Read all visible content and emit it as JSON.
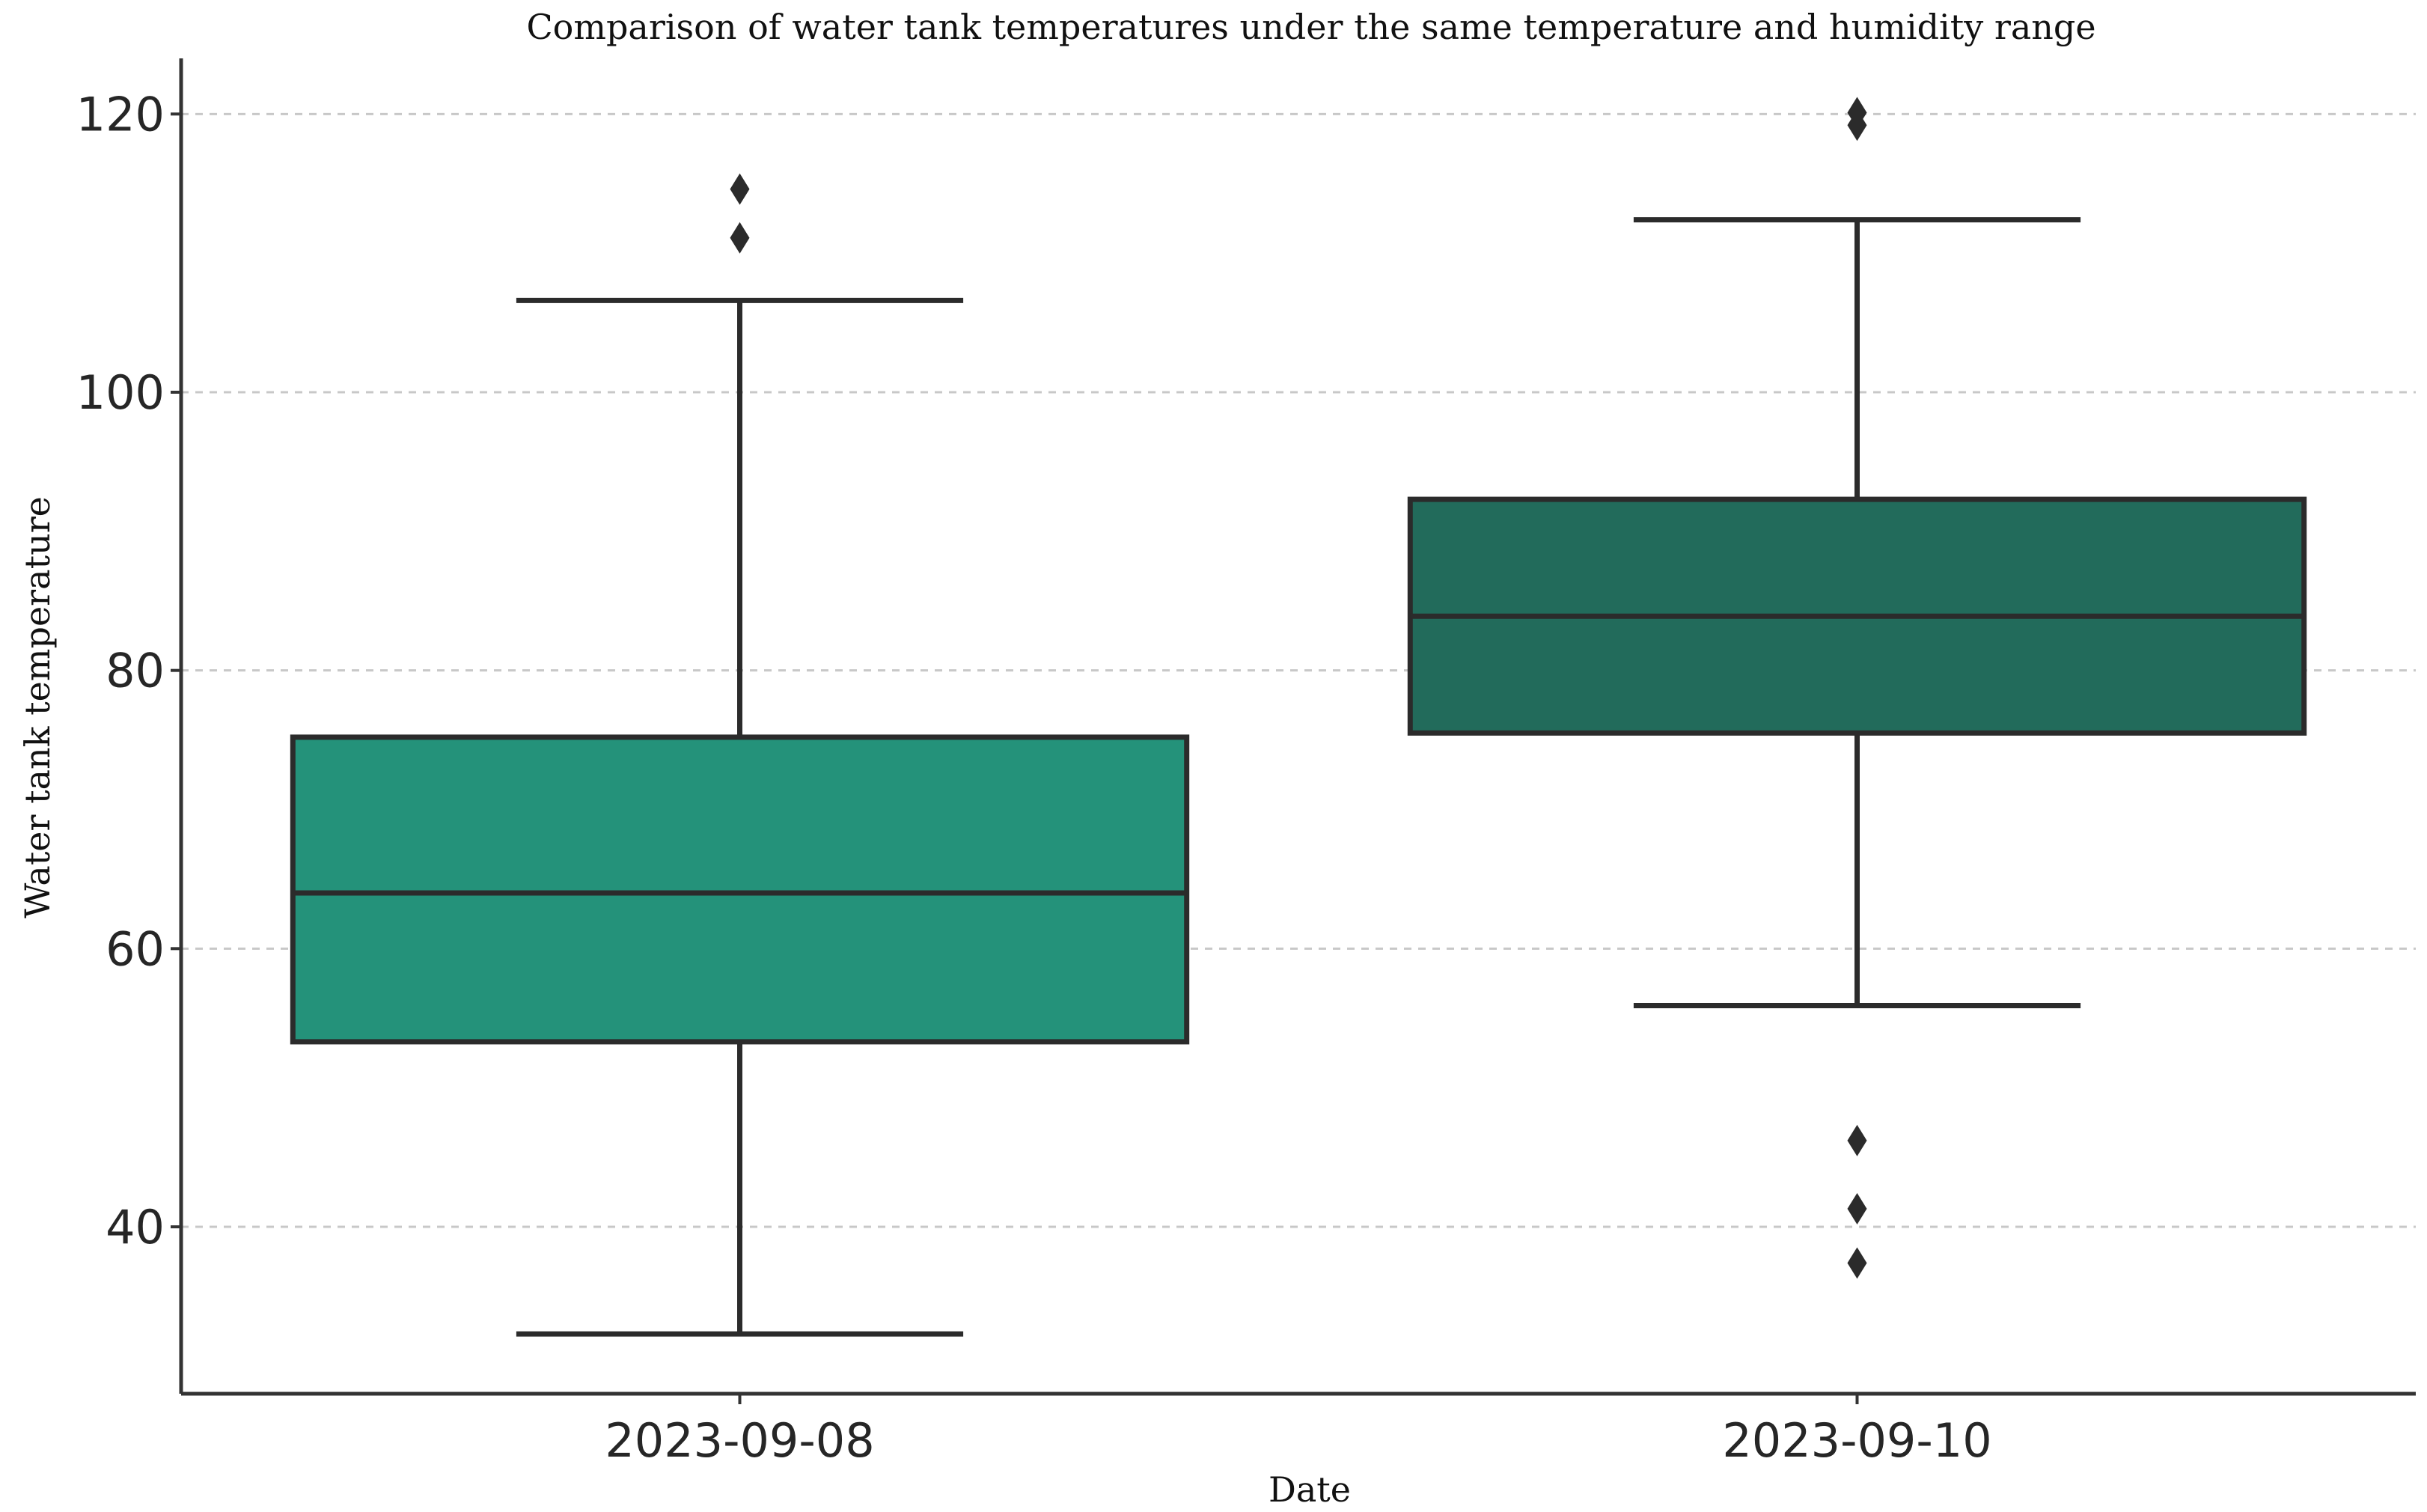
{
  "chart_data": {
    "type": "box",
    "title": "Comparison of water tank temperatures under the same temperature and humidity range",
    "xlabel": "Date",
    "ylabel": "Water tank temperature",
    "ylim": [
      28,
      124
    ],
    "yticks": [
      40,
      60,
      80,
      100,
      120
    ],
    "grid": "horizontal dashed",
    "categories": [
      "2023-09-08",
      "2023-09-10"
    ],
    "boxes": [
      {
        "category": "2023-09-08",
        "whisker_low": 32.3,
        "q1": 53.3,
        "median": 64.0,
        "q3": 75.2,
        "whisker_high": 106.6,
        "outliers": [
          111.1,
          114.6
        ],
        "color": "#24927A"
      },
      {
        "category": "2023-09-10",
        "whisker_low": 55.9,
        "q1": 75.5,
        "median": 83.9,
        "q3": 92.3,
        "whisker_high": 112.4,
        "outliers": [
          37.4,
          41.3,
          46.2,
          119.2,
          120.1
        ],
        "color": "#226B5B"
      }
    ]
  }
}
